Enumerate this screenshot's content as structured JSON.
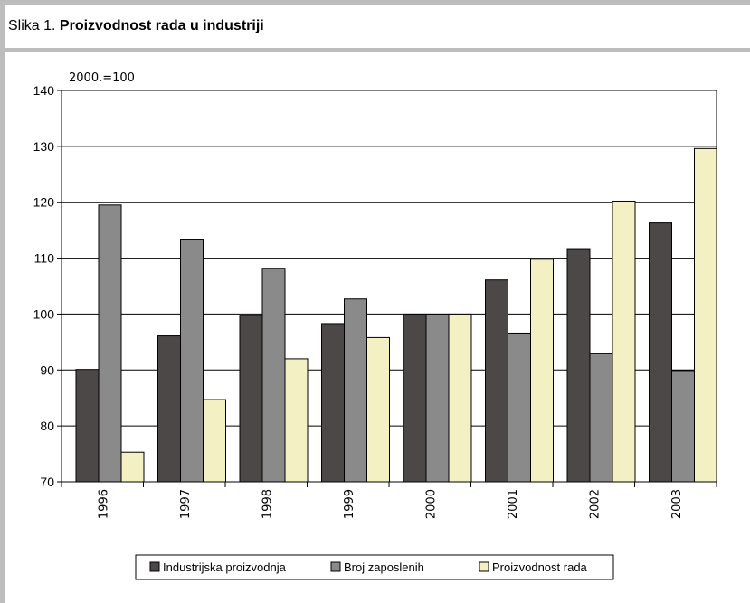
{
  "figure": {
    "caption_prefix": "Slika 1. ",
    "caption_title": "Proizvodnost rada u industriji"
  },
  "chart_data": {
    "type": "bar",
    "unit_label": "2000.=100",
    "categories": [
      "1996",
      "1997",
      "1998",
      "1999",
      "2000",
      "2001",
      "2002",
      "2003"
    ],
    "series": [
      {
        "name": "Industrijska proizvodnja",
        "color": "#4d4848",
        "values": [
          90.1,
          96.1,
          99.8,
          98.3,
          100,
          106.1,
          111.7,
          116.3
        ]
      },
      {
        "name": "Broj zaposlenih",
        "color": "#8a8a8a",
        "values": [
          119.5,
          113.4,
          108.2,
          102.7,
          100,
          96.6,
          92.9,
          89.9
        ]
      },
      {
        "name": "Proizvodnost rada",
        "color": "#f3f0c4",
        "values": [
          75.3,
          84.7,
          92.0,
          95.8,
          100,
          109.8,
          120.2,
          129.6
        ]
      }
    ],
    "ylim": [
      70,
      140
    ],
    "yticks": [
      70,
      80,
      90,
      100,
      110,
      120,
      130,
      140
    ],
    "grid": true,
    "legend_position": "bottom"
  }
}
